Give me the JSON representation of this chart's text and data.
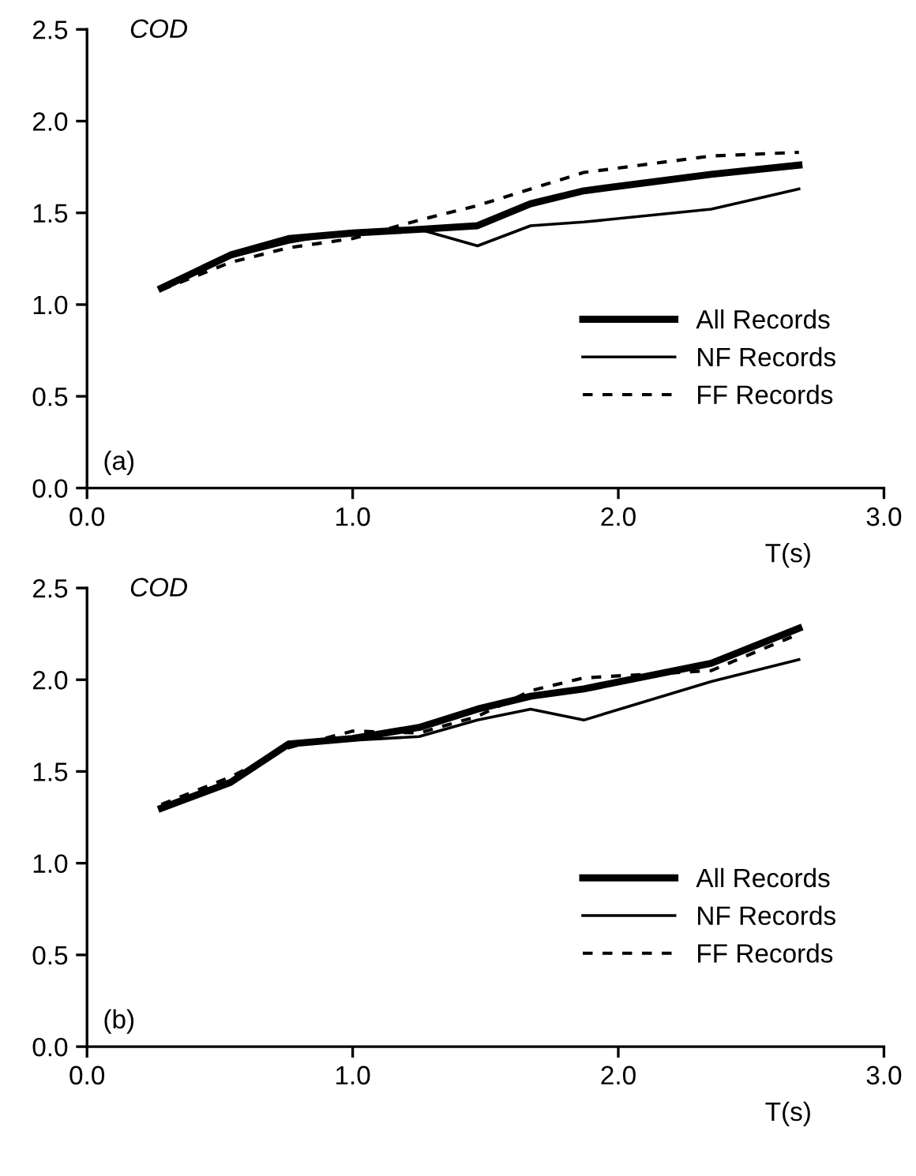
{
  "chart_data": [
    {
      "type": "line",
      "xlabel": "T(s)",
      "ylabel": "COD",
      "annotations": [
        "(a)"
      ],
      "x": [
        0.28,
        0.54,
        0.76,
        1.0,
        1.25,
        1.47,
        1.67,
        1.87,
        2.35,
        2.68
      ],
      "series": [
        {
          "name": "All Records",
          "color": "#000000",
          "line_style": "solid",
          "values": [
            1.09,
            1.27,
            1.36,
            1.39,
            1.41,
            1.43,
            1.55,
            1.62,
            1.71,
            1.76
          ]
        },
        {
          "name": "NF Records",
          "color": "#000000",
          "line_style": "solid",
          "values": [
            1.09,
            1.26,
            1.34,
            1.4,
            1.41,
            1.32,
            1.43,
            1.45,
            1.52,
            1.63
          ]
        },
        {
          "name": "FF Records",
          "color": "#000000",
          "line_style": "dashed",
          "values": [
            1.08,
            1.23,
            1.31,
            1.36,
            1.46,
            1.54,
            1.63,
            1.72,
            1.81,
            1.83
          ]
        }
      ],
      "xlim": [
        0.0,
        3.0
      ],
      "xticks": [
        {
          "value": 0,
          "label": "0.0"
        },
        {
          "value": 1,
          "label": "1.0"
        },
        {
          "value": 2,
          "label": "2.0"
        },
        {
          "value": 3,
          "label": "3.0"
        }
      ],
      "ylim": [
        0.0,
        2.5
      ],
      "yticks": [
        {
          "value": 0,
          "label": "0.0"
        },
        {
          "value": 0.5,
          "label": "0.5"
        },
        {
          "value": 1,
          "label": "1.0"
        },
        {
          "value": 1.5,
          "label": "1.5"
        },
        {
          "value": 2,
          "label": "2.0"
        },
        {
          "value": 2.5,
          "label": "2.5"
        }
      ],
      "grid": false,
      "legend": "bottom right",
      "marker": "none"
    },
    {
      "type": "line",
      "xlabel": "T(s)",
      "ylabel": "COD",
      "annotations": [
        "(b)"
      ],
      "x": [
        0.28,
        0.54,
        0.76,
        1.0,
        1.25,
        1.47,
        1.67,
        1.87,
        2.35,
        2.68
      ],
      "series": [
        {
          "name": "All Records",
          "color": "#000000",
          "line_style": "solid",
          "values": [
            1.3,
            1.44,
            1.65,
            1.68,
            1.74,
            1.84,
            1.91,
            1.95,
            2.09,
            2.28
          ]
        },
        {
          "name": "NF Records",
          "color": "#000000",
          "line_style": "solid",
          "values": [
            1.31,
            1.45,
            1.66,
            1.67,
            1.69,
            1.78,
            1.84,
            1.78,
            1.99,
            2.11
          ]
        },
        {
          "name": "FF Records",
          "color": "#000000",
          "line_style": "dashed",
          "values": [
            1.32,
            1.47,
            1.63,
            1.72,
            1.71,
            1.8,
            1.94,
            2.01,
            2.05,
            2.25
          ]
        }
      ],
      "xlim": [
        0.0,
        3.0
      ],
      "xticks": [
        {
          "value": 0,
          "label": "0.0"
        },
        {
          "value": 1,
          "label": "1.0"
        },
        {
          "value": 2,
          "label": "2.0"
        },
        {
          "value": 3,
          "label": "3.0"
        }
      ],
      "ylim": [
        0.0,
        2.5
      ],
      "yticks": [
        {
          "value": 0,
          "label": "0.0"
        },
        {
          "value": 0.5,
          "label": "0.5"
        },
        {
          "value": 1,
          "label": "1.0"
        },
        {
          "value": 1.5,
          "label": "1.5"
        },
        {
          "value": 2,
          "label": "2.0"
        },
        {
          "value": 2.5,
          "label": "2.5"
        }
      ],
      "grid": false,
      "legend": "bottom right",
      "marker": "none"
    }
  ]
}
